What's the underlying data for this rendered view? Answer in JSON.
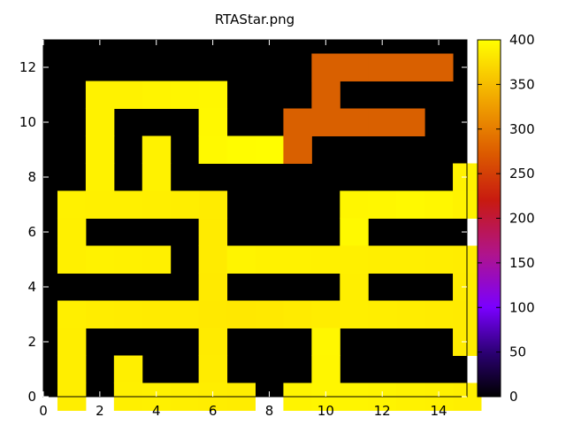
{
  "chart_data": {
    "type": "heatmap",
    "title": "RTAStar.png",
    "xlabel": "",
    "ylabel": "",
    "xlim": [
      0,
      15
    ],
    "ylim": [
      0,
      13
    ],
    "x_ticks": [
      "0",
      "2",
      "4",
      "6",
      "8",
      "10",
      "12",
      "14"
    ],
    "x_tick_values": [
      0,
      2,
      4,
      6,
      8,
      10,
      12,
      14
    ],
    "y_ticks": [
      "0",
      "2",
      "4",
      "6",
      "8",
      "10",
      "12"
    ],
    "y_tick_values": [
      0,
      2,
      4,
      6,
      8,
      10,
      12
    ],
    "colorbar": {
      "min": 0,
      "max": 400,
      "ticks": [
        "0",
        "50",
        "100",
        "150",
        "200",
        "250",
        "300",
        "350",
        "400"
      ],
      "tick_values": [
        0,
        50,
        100,
        150,
        200,
        250,
        300,
        350,
        400
      ],
      "palette": "black-purple-red-orange-yellow"
    },
    "grid": false,
    "rows_top_to_bottom": [
      [
        0,
        0,
        0,
        0,
        0,
        0,
        0,
        0,
        0,
        0,
        0,
        0,
        0,
        0,
        0
      ],
      [
        0,
        384,
        384,
        386,
        388,
        390,
        0,
        0,
        0,
        0,
        0,
        0,
        0,
        0,
        0
      ],
      [
        0,
        384,
        0,
        0,
        0,
        391,
        0,
        0,
        0,
        0,
        0,
        0,
        0,
        0,
        0
      ],
      [
        0,
        384,
        0,
        384,
        0,
        392,
        396,
        398,
        0,
        0,
        0,
        0,
        0,
        0,
        0
      ],
      [
        0,
        384,
        0,
        383,
        0,
        0,
        0,
        0,
        0,
        0,
        0,
        0,
        0,
        0,
        383
      ],
      [
        382,
        381,
        381,
        380,
        378,
        376,
        0,
        0,
        0,
        0,
        388,
        390,
        392,
        390,
        385
      ],
      [
        381,
        0,
        0,
        0,
        0,
        375,
        0,
        0,
        0,
        0,
        392,
        0,
        0,
        0,
        0
      ],
      [
        381,
        383,
        382,
        381,
        0,
        374,
        386,
        384,
        383,
        382,
        381,
        380,
        379,
        378,
        377
      ],
      [
        0,
        0,
        0,
        0,
        0,
        373,
        0,
        0,
        0,
        0,
        380,
        0,
        0,
        0,
        376
      ],
      [
        379,
        377,
        376,
        375,
        374,
        372,
        371,
        372,
        374,
        377,
        379,
        378,
        377,
        376,
        375
      ],
      [
        378,
        0,
        0,
        0,
        0,
        374,
        0,
        0,
        0,
        390,
        0,
        0,
        0,
        0,
        374
      ],
      [
        378,
        0,
        380,
        0,
        0,
        376,
        0,
        0,
        0,
        389,
        0,
        0,
        0,
        0,
        0
      ],
      [
        378,
        0,
        381,
        382,
        380,
        378,
        377,
        0,
        386,
        388,
        387,
        386,
        384,
        382,
        380
      ]
    ],
    "orange_cells": [
      {
        "x": 9,
        "y": 12,
        "value": 280
      },
      {
        "x": 10,
        "y": 12,
        "value": 280
      },
      {
        "x": 11,
        "y": 12,
        "value": 280
      },
      {
        "x": 12,
        "y": 12,
        "value": 280
      },
      {
        "x": 13,
        "y": 12,
        "value": 280
      },
      {
        "x": 9,
        "y": 11,
        "value": 280
      },
      {
        "x": 8,
        "y": 10,
        "value": 280
      },
      {
        "x": 9,
        "y": 10,
        "value": 280
      },
      {
        "x": 10,
        "y": 10,
        "value": 280
      },
      {
        "x": 11,
        "y": 10,
        "value": 280
      },
      {
        "x": 12,
        "y": 10,
        "value": 280
      },
      {
        "x": 8,
        "y": 9,
        "value": 280
      }
    ]
  }
}
